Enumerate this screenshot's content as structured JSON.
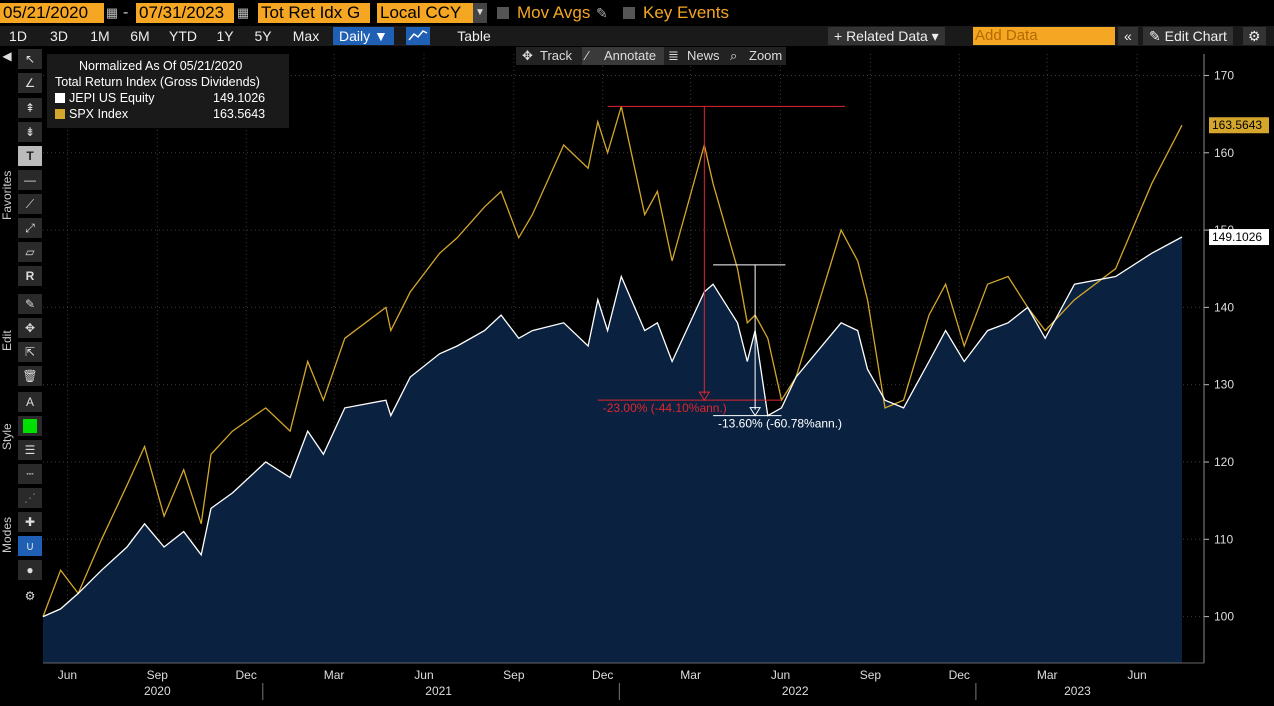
{
  "toolbar_top": {
    "start_date": "05/21/2020",
    "end_date": "07/31/2023",
    "separator": "-",
    "return_type": "Tot Ret Idx G",
    "currency": "Local CCY",
    "mov_avgs_label": "Mov Avgs",
    "key_events_label": "Key Events"
  },
  "toolbar_periods": {
    "periods": [
      "1D",
      "3D",
      "1M",
      "6M",
      "YTD",
      "1Y",
      "5Y",
      "Max"
    ],
    "frequency": "Daily ▼",
    "table_label": "Table",
    "related_data_label": "+ Related Data ▾",
    "add_data_placeholder": "Add Data",
    "back_label": "«",
    "edit_chart_label": "✎ Edit Chart",
    "settings_label": "⚙"
  },
  "chart_tools": {
    "track_label": "Track",
    "annotate_label": "Annotate",
    "news_label": "News",
    "zoom_label": "Zoom"
  },
  "side_toolbar": {
    "favorites_label": "Favorites",
    "edit_label": "Edit",
    "style_label": "Style",
    "modes_label": "Modes",
    "text_tool_label": "T",
    "region_tool_label": "R"
  },
  "legend": {
    "line1": "Normalized As Of 05/21/2020",
    "line2": "Total Return Index (Gross Dividends)",
    "series1_name": "JEPI US Equity",
    "series1_value": "149.1026",
    "series2_name": "SPX Index",
    "series2_value": "163.5643"
  },
  "annotations": {
    "spx_drawdown": "-23.00% (-44.10%ann.)",
    "jepi_drawdown": "-13.60% (-60.78%ann.)"
  },
  "colors": {
    "jepi_line": "#ffffff",
    "jepi_fill": "#0a2240",
    "spx_line": "#d4a72c",
    "spx_drawdown": "#e0262f",
    "accent_orange": "#f5a623"
  },
  "chart_data": {
    "type": "line",
    "title": "",
    "x_range": [
      "2020-05-21",
      "2023-07-31"
    ],
    "ylim": [
      94,
      172
    ],
    "y_ticks": [
      100,
      110,
      120,
      130,
      140,
      150,
      160,
      170
    ],
    "grid": true,
    "legend_position": "top-left",
    "x_month_labels": [
      {
        "date": "2020-06-15",
        "label": "Jun"
      },
      {
        "date": "2020-09-15",
        "label": "Sep"
      },
      {
        "date": "2020-12-15",
        "label": "Dec"
      },
      {
        "date": "2021-03-15",
        "label": "Mar"
      },
      {
        "date": "2021-06-15",
        "label": "Jun"
      },
      {
        "date": "2021-09-15",
        "label": "Sep"
      },
      {
        "date": "2021-12-15",
        "label": "Dec"
      },
      {
        "date": "2022-03-15",
        "label": "Mar"
      },
      {
        "date": "2022-06-15",
        "label": "Jun"
      },
      {
        "date": "2022-09-15",
        "label": "Sep"
      },
      {
        "date": "2022-12-15",
        "label": "Dec"
      },
      {
        "date": "2023-03-15",
        "label": "Mar"
      },
      {
        "date": "2023-06-15",
        "label": "Jun"
      }
    ],
    "x_year_labels": [
      {
        "date": "2020-09-15",
        "label": "2020"
      },
      {
        "date": "2021-06-30",
        "label": "2021"
      },
      {
        "date": "2022-06-30",
        "label": "2022"
      },
      {
        "date": "2023-04-15",
        "label": "2023"
      }
    ],
    "year_dividers": [
      "2021-01-01",
      "2022-01-01",
      "2023-01-01"
    ],
    "series": [
      {
        "name": "JEPI US Equity",
        "last_value": "149.1026",
        "x": [
          "2020-05-21",
          "2020-06-08",
          "2020-06-26",
          "2020-07-20",
          "2020-08-15",
          "2020-09-02",
          "2020-09-22",
          "2020-10-12",
          "2020-10-30",
          "2020-11-09",
          "2020-12-01",
          "2021-01-04",
          "2021-01-29",
          "2021-02-16",
          "2021-03-04",
          "2021-03-26",
          "2021-05-07",
          "2021-05-12",
          "2021-06-01",
          "2021-07-01",
          "2021-07-19",
          "2021-08-16",
          "2021-09-02",
          "2021-09-20",
          "2021-10-04",
          "2021-11-05",
          "2021-11-30",
          "2021-12-10",
          "2021-12-20",
          "2022-01-03",
          "2022-01-27",
          "2022-02-09",
          "2022-02-24",
          "2022-03-29",
          "2022-04-07",
          "2022-05-02",
          "2022-05-12",
          "2022-05-20",
          "2022-06-02",
          "2022-06-16",
          "2022-07-01",
          "2022-08-16",
          "2022-09-02",
          "2022-09-12",
          "2022-09-30",
          "2022-10-19",
          "2022-11-14",
          "2022-12-01",
          "2022-12-20",
          "2023-01-13",
          "2023-02-03",
          "2023-02-23",
          "2023-03-13",
          "2023-04-12",
          "2023-05-24",
          "2023-06-30",
          "2023-07-31"
        ],
        "y": [
          100,
          101,
          103,
          106,
          109,
          112,
          109,
          111,
          108,
          114,
          116,
          120,
          118,
          124,
          121,
          127,
          128,
          126,
          131,
          134,
          135,
          137,
          139,
          136,
          137,
          138,
          135,
          141,
          137,
          144,
          137,
          138,
          133,
          142,
          143,
          138,
          133,
          137,
          126,
          127,
          131,
          138,
          137,
          132,
          128,
          127,
          133,
          137,
          133,
          137,
          138,
          140,
          136,
          143,
          144,
          147,
          149.1
        ]
      },
      {
        "name": "SPX Index",
        "last_value": "163.5643",
        "x": [
          "2020-05-21",
          "2020-06-08",
          "2020-06-26",
          "2020-07-20",
          "2020-08-15",
          "2020-09-02",
          "2020-09-22",
          "2020-10-12",
          "2020-10-30",
          "2020-11-09",
          "2020-12-01",
          "2021-01-04",
          "2021-01-29",
          "2021-02-16",
          "2021-03-04",
          "2021-03-26",
          "2021-05-07",
          "2021-05-12",
          "2021-06-01",
          "2021-07-01",
          "2021-07-19",
          "2021-08-16",
          "2021-09-02",
          "2021-09-20",
          "2021-10-04",
          "2021-11-05",
          "2021-11-30",
          "2021-12-10",
          "2021-12-20",
          "2022-01-03",
          "2022-01-27",
          "2022-02-09",
          "2022-02-24",
          "2022-03-29",
          "2022-04-07",
          "2022-05-02",
          "2022-05-12",
          "2022-05-20",
          "2022-06-02",
          "2022-06-16",
          "2022-07-01",
          "2022-08-16",
          "2022-09-02",
          "2022-09-12",
          "2022-09-30",
          "2022-10-19",
          "2022-11-14",
          "2022-12-01",
          "2022-12-20",
          "2023-01-13",
          "2023-02-03",
          "2023-02-23",
          "2023-03-13",
          "2023-04-12",
          "2023-05-24",
          "2023-06-30",
          "2023-07-31"
        ],
        "y": [
          100,
          106,
          103,
          110,
          117,
          122,
          113,
          119,
          112,
          121,
          124,
          127,
          124,
          133,
          128,
          136,
          140,
          137,
          142,
          147,
          149,
          153,
          155,
          149,
          152,
          161,
          158,
          164,
          160,
          166,
          152,
          155,
          146,
          161,
          156,
          145,
          138,
          139,
          136,
          128,
          131,
          150,
          146,
          141,
          127,
          128,
          139,
          143,
          135,
          143,
          144,
          140,
          137,
          141,
          145,
          156,
          163.56
        ]
      }
    ]
  },
  "price_tags": {
    "spx": "163.5643",
    "jepi": "149.1026"
  }
}
